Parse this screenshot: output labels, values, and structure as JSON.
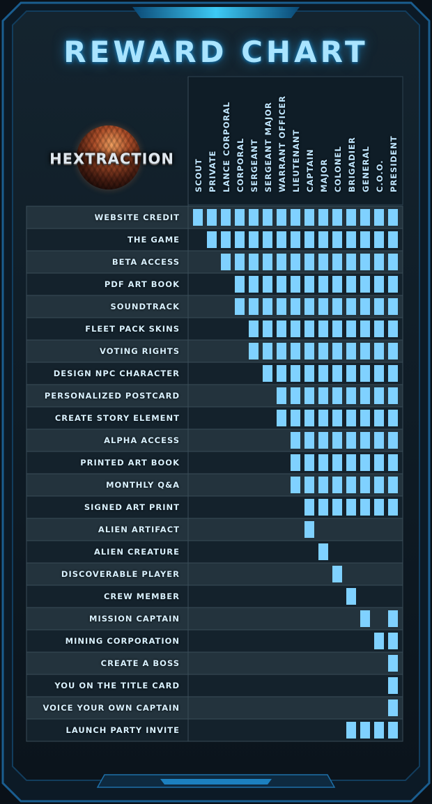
{
  "header": {
    "title": "REWARD CHART"
  },
  "logo": {
    "text": "HEXTRACTION",
    "planet": "planet-icon"
  },
  "colors": {
    "frame": "#0d1720",
    "accent": "#1e90d8",
    "cell": "#7fd1ff",
    "label": "#d8f1ff"
  },
  "chart_data": {
    "type": "table",
    "title": "REWARD CHART",
    "columns": [
      "SCOUT",
      "PRIVATE",
      "LANCE CORPORAL",
      "CORPORAL",
      "SERGEANT",
      "SERGEANT MAJOR",
      "WARRANT OFFICER",
      "LIEUTENANT",
      "CAPTAIN",
      "MAJOR",
      "COLONEL",
      "BRIGADIER",
      "GENERAL",
      "C.O.O.",
      "PRESIDENT"
    ],
    "rows": [
      {
        "label": "WEBSITE CREDIT",
        "tiers": [
          0,
          1,
          2,
          3,
          4,
          5,
          6,
          7,
          8,
          9,
          10,
          11,
          12,
          13,
          14
        ]
      },
      {
        "label": "THE GAME",
        "tiers": [
          1,
          2,
          3,
          4,
          5,
          6,
          7,
          8,
          9,
          10,
          11,
          12,
          13,
          14
        ]
      },
      {
        "label": "BETA ACCESS",
        "tiers": [
          2,
          3,
          4,
          5,
          6,
          7,
          8,
          9,
          10,
          11,
          12,
          13,
          14
        ]
      },
      {
        "label": "PDF ART BOOK",
        "tiers": [
          3,
          4,
          5,
          6,
          7,
          8,
          9,
          10,
          11,
          12,
          13,
          14
        ]
      },
      {
        "label": "SOUNDTRACK",
        "tiers": [
          3,
          4,
          5,
          6,
          7,
          8,
          9,
          10,
          11,
          12,
          13,
          14
        ]
      },
      {
        "label": "FLEET PACK SKINS",
        "tiers": [
          4,
          5,
          6,
          7,
          8,
          9,
          10,
          11,
          12,
          13,
          14
        ]
      },
      {
        "label": "VOTING RIGHTS",
        "tiers": [
          4,
          5,
          6,
          7,
          8,
          9,
          10,
          11,
          12,
          13,
          14
        ]
      },
      {
        "label": "DESIGN NPC CHARACTER",
        "tiers": [
          5,
          6,
          7,
          8,
          9,
          10,
          11,
          12,
          13,
          14
        ]
      },
      {
        "label": "PERSONALIZED POSTCARD",
        "tiers": [
          6,
          7,
          8,
          9,
          10,
          11,
          12,
          13,
          14
        ]
      },
      {
        "label": "CREATE STORY ELEMENT",
        "tiers": [
          6,
          7,
          8,
          9,
          10,
          11,
          12,
          13,
          14
        ]
      },
      {
        "label": "ALPHA ACCESS",
        "tiers": [
          7,
          8,
          9,
          10,
          11,
          12,
          13,
          14
        ]
      },
      {
        "label": "PRINTED ART BOOK",
        "tiers": [
          7,
          8,
          9,
          10,
          11,
          12,
          13,
          14
        ]
      },
      {
        "label": "MONTHLY Q&A",
        "tiers": [
          7,
          8,
          9,
          10,
          11,
          12,
          13,
          14
        ]
      },
      {
        "label": "SIGNED ART PRINT",
        "tiers": [
          8,
          9,
          10,
          11,
          12,
          13,
          14
        ]
      },
      {
        "label": "ALIEN ARTIFACT",
        "tiers": [
          8
        ]
      },
      {
        "label": "ALIEN CREATURE",
        "tiers": [
          9
        ]
      },
      {
        "label": "DISCOVERABLE PLAYER",
        "tiers": [
          10
        ]
      },
      {
        "label": "CREW MEMBER",
        "tiers": [
          11
        ]
      },
      {
        "label": "MISSION CAPTAIN",
        "tiers": [
          12,
          14
        ]
      },
      {
        "label": "MINING CORPORATION",
        "tiers": [
          13,
          14
        ]
      },
      {
        "label": "CREATE A BOSS",
        "tiers": [
          14
        ]
      },
      {
        "label": "YOU ON THE TITLE CARD",
        "tiers": [
          14
        ]
      },
      {
        "label": "VOICE YOUR OWN CAPTAIN",
        "tiers": [
          14
        ]
      },
      {
        "label": "LAUNCH PARTY INVITE",
        "tiers": [
          11,
          12,
          13,
          14
        ]
      }
    ]
  }
}
